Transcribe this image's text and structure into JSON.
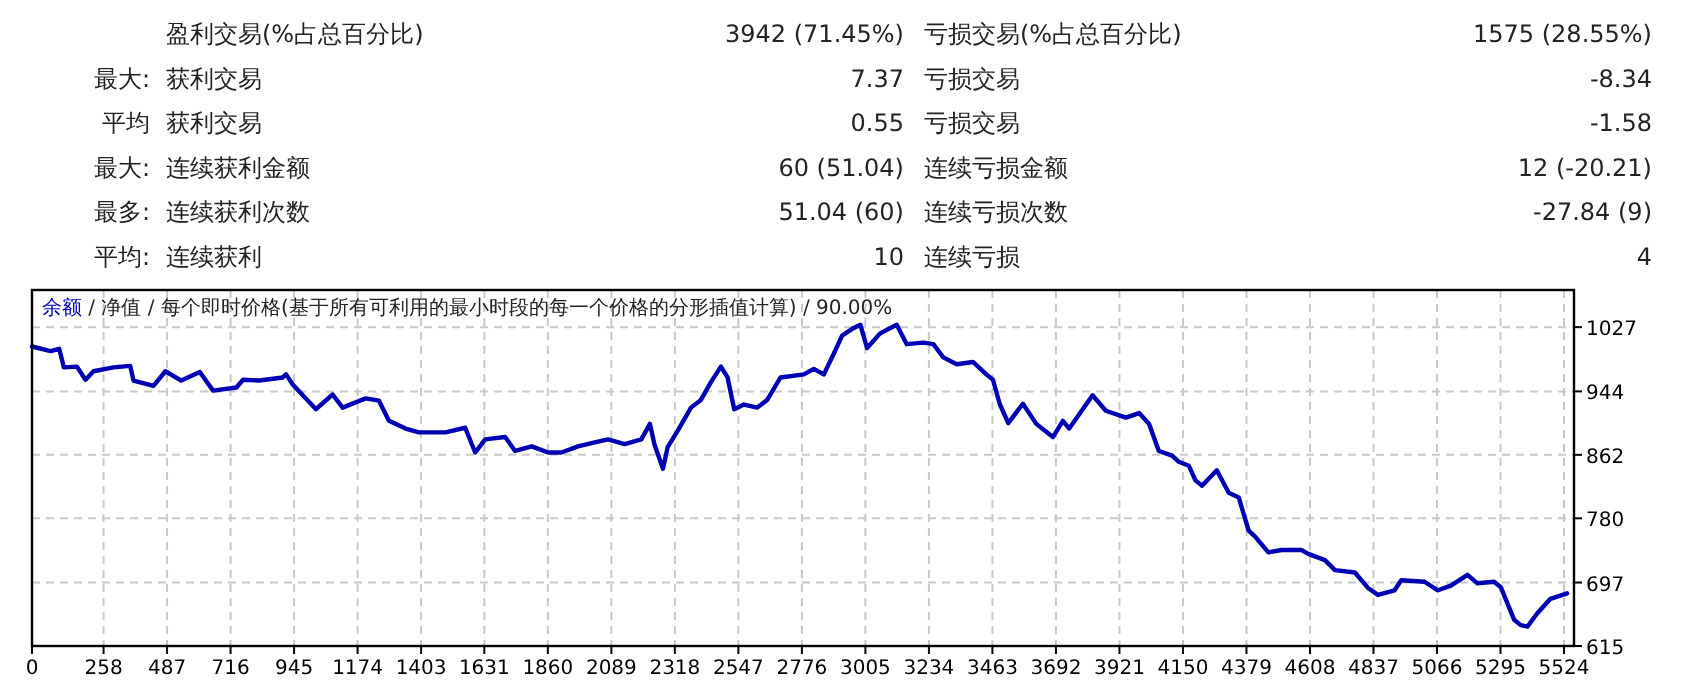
{
  "chart_data": [
    {
      "type": "other",
      "annotations": [
        "盈利交易(%占总百分比)",
        "3942 (71.45%)",
        "亏损交易(%占总百分比)",
        "1575 (28.55%)",
        "最大:",
        "获利交易",
        "7.37",
        "亏损交易",
        "-8.34",
        "平均",
        "获利交易",
        "0.55",
        "亏损交易",
        "-1.58",
        "最大:",
        "连续获利金额",
        "60 (51.04)",
        "连续亏损金额",
        "12 (-20.21)",
        "最多:",
        "连续获利次数",
        "51.04 (60)",
        "连续亏损次数",
        "-27.84 (9)",
        "平均:",
        "连续获利",
        "10",
        "连续亏损",
        "4"
      ]
    },
    {
      "type": "line",
      "title": "余额 / 净值 / 每个即时价格(基于所有可利用的最小时段的每一个价格的分形插值计算) / 90.00%",
      "grid": true,
      "line_style": "solid",
      "marker": "none",
      "x": [
        0,
        67,
        98,
        115,
        162,
        193,
        222,
        294,
        354,
        366,
        438,
        481,
        538,
        605,
        653,
        737,
        761,
        820,
        904,
        916,
        940,
        1024,
        1084,
        1120,
        1203,
        1251,
        1287,
        1347,
        1395,
        1491,
        1562,
        1598,
        1634,
        1706,
        1742,
        1802,
        1861,
        1909,
        1969,
        2029,
        2077,
        2137,
        2197,
        2228,
        2244,
        2275,
        2292,
        2328,
        2376,
        2412,
        2448,
        2484,
        2508,
        2532,
        2567,
        2615,
        2651,
        2699,
        2783,
        2819,
        2855,
        2890,
        2921,
        2963,
        2987,
        3011,
        3058,
        3118,
        3154,
        3214,
        3250,
        3286,
        3334,
        3393,
        3441,
        3465,
        3489,
        3520,
        3573,
        3621,
        3681,
        3717,
        3740,
        3824,
        3872,
        3944,
        3992,
        4028,
        4063,
        4111,
        4135,
        4171,
        4195,
        4219,
        4272,
        4315,
        4351,
        4387,
        4411,
        4458,
        4506,
        4578,
        4602,
        4662,
        4698,
        4770,
        4817,
        4853,
        4913,
        4937,
        5021,
        5069,
        5116,
        5176,
        5212,
        5272,
        5296,
        5344,
        5368,
        5392,
        5427,
        5475,
        5535
      ],
      "series": [
        {
          "color": "#0000b4",
          "values": [
            1002,
            996,
            999,
            975,
            976,
            959,
            970,
            975,
            977,
            958,
            951,
            970,
            958,
            969,
            945,
            949,
            959,
            958,
            962,
            966,
            953,
            921,
            940,
            923,
            935,
            932,
            906,
            896,
            891,
            891,
            897,
            865,
            882,
            885,
            867,
            873,
            865,
            865,
            873,
            878,
            882,
            876,
            882,
            902,
            876,
            844,
            872,
            893,
            923,
            933,
            956,
            976,
            962,
            921,
            927,
            923,
            933,
            962,
            966,
            973,
            966,
            992,
            1016,
            1026,
            1030,
            1000,
            1019,
            1030,
            1005,
            1007,
            1005,
            988,
            979,
            982,
            966,
            959,
            928,
            903,
            928,
            902,
            885,
            906,
            896,
            939,
            919,
            910,
            916,
            902,
            867,
            861,
            853,
            848,
            829,
            822,
            842,
            813,
            807,
            764,
            756,
            736,
            739,
            739,
            734,
            726,
            713,
            710,
            690,
            681,
            687,
            700,
            698,
            687,
            693,
            707,
            696,
            698,
            691,
            649,
            642,
            640,
            657,
            676,
            683
          ]
        }
      ],
      "xlim": [
        0,
        5560
      ],
      "xticks": [
        0,
        258,
        487,
        716,
        945,
        1174,
        1403,
        1631,
        1860,
        2089,
        2318,
        2547,
        2776,
        3005,
        3234,
        3463,
        3692,
        3921,
        4150,
        4379,
        4608,
        4837,
        5066,
        5295,
        5524
      ],
      "ylim": [
        615,
        1075
      ],
      "yticks": [
        615,
        697,
        780,
        862,
        944,
        1027
      ]
    }
  ]
}
